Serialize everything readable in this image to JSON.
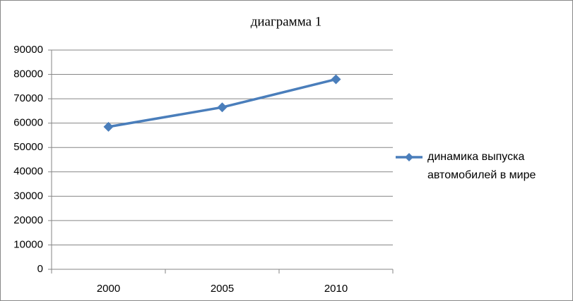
{
  "chart_data": {
    "type": "line",
    "title": "диаграмма 1",
    "categories": [
      "2000",
      "2005",
      "2010"
    ],
    "series": [
      {
        "name": "динамика выпуска автомобилей в мире",
        "color": "#4a7ebb",
        "values": [
          58500,
          66500,
          78000
        ]
      }
    ],
    "ylim": [
      0,
      90000
    ],
    "yticks": [
      0,
      10000,
      20000,
      30000,
      40000,
      50000,
      60000,
      70000,
      80000,
      90000
    ],
    "grid": true,
    "legend": "right"
  }
}
